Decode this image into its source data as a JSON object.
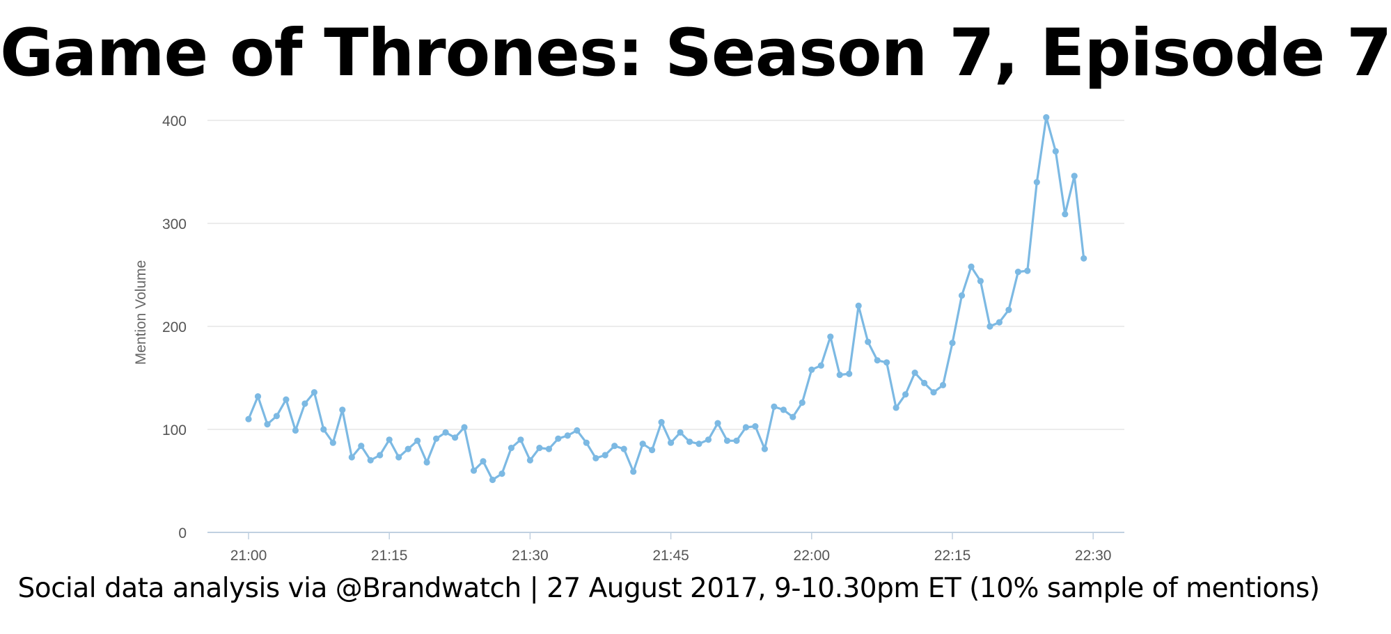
{
  "page": {
    "title": "Game of Thrones: Season 7, Episode 7",
    "footer": "Social data analysis via @Brandwatch | 27 August 2017, 9-10.30pm ET (10% sample of mentions)"
  },
  "chart_data": {
    "type": "line",
    "title": "Game of Thrones: Season 7, Episode 7",
    "xlabel": "",
    "ylabel": "Mention Volume",
    "x_unit": "time (HH:MM, 1-minute intervals)",
    "x_start": "21:00",
    "x_ticks": [
      "21:00",
      "21:15",
      "21:30",
      "21:45",
      "22:00",
      "22:15",
      "22:30"
    ],
    "x_range_minutes_labels": [
      "21:00",
      "22:30"
    ],
    "ylim": [
      0,
      400
    ],
    "y_ticks": [
      0,
      100,
      200,
      300,
      400
    ],
    "grid": true,
    "legend": "none",
    "line_color": "#7cb9e3",
    "series": [
      {
        "name": "",
        "x": [
          "21:00",
          "21:01",
          "21:02",
          "21:03",
          "21:04",
          "21:05",
          "21:06",
          "21:07",
          "21:08",
          "21:09",
          "21:10",
          "21:11",
          "21:12",
          "21:13",
          "21:14",
          "21:15",
          "21:16",
          "21:17",
          "21:18",
          "21:19",
          "21:20",
          "21:21",
          "21:22",
          "21:23",
          "21:24",
          "21:25",
          "21:26",
          "21:27",
          "21:28",
          "21:29",
          "21:30",
          "21:31",
          "21:32",
          "21:33",
          "21:34",
          "21:35",
          "21:36",
          "21:37",
          "21:38",
          "21:39",
          "21:40",
          "21:41",
          "21:42",
          "21:43",
          "21:44",
          "21:45",
          "21:46",
          "21:47",
          "21:48",
          "21:49",
          "21:50",
          "21:51",
          "21:52",
          "21:53",
          "21:54",
          "21:55",
          "21:56",
          "21:57",
          "21:58",
          "21:59",
          "22:00",
          "22:01",
          "22:02",
          "22:03",
          "22:04",
          "22:05",
          "22:06",
          "22:07",
          "22:08",
          "22:09",
          "22:10",
          "22:11",
          "22:12",
          "22:13",
          "22:14",
          "22:15",
          "22:16",
          "22:17",
          "22:18",
          "22:19",
          "22:20",
          "22:21",
          "22:22",
          "22:23",
          "22:24",
          "22:25",
          "22:26",
          "22:27",
          "22:28",
          "22:29"
        ],
        "values": [
          110,
          132,
          105,
          113,
          129,
          99,
          125,
          136,
          100,
          87,
          119,
          73,
          84,
          70,
          75,
          90,
          73,
          81,
          89,
          68,
          91,
          97,
          92,
          102,
          60,
          69,
          51,
          57,
          82,
          90,
          70,
          82,
          81,
          91,
          94,
          99,
          87,
          72,
          75,
          84,
          81,
          59,
          86,
          80,
          107,
          87,
          97,
          88,
          86,
          90,
          106,
          89,
          89,
          102,
          103,
          81,
          122,
          119,
          112,
          126,
          158,
          162,
          190,
          153,
          154,
          220,
          185,
          167,
          165,
          121,
          134,
          155,
          145,
          136,
          143,
          184,
          230,
          258,
          244,
          200,
          204,
          216,
          253,
          254,
          340,
          403,
          370,
          309,
          346,
          266
        ]
      }
    ]
  }
}
